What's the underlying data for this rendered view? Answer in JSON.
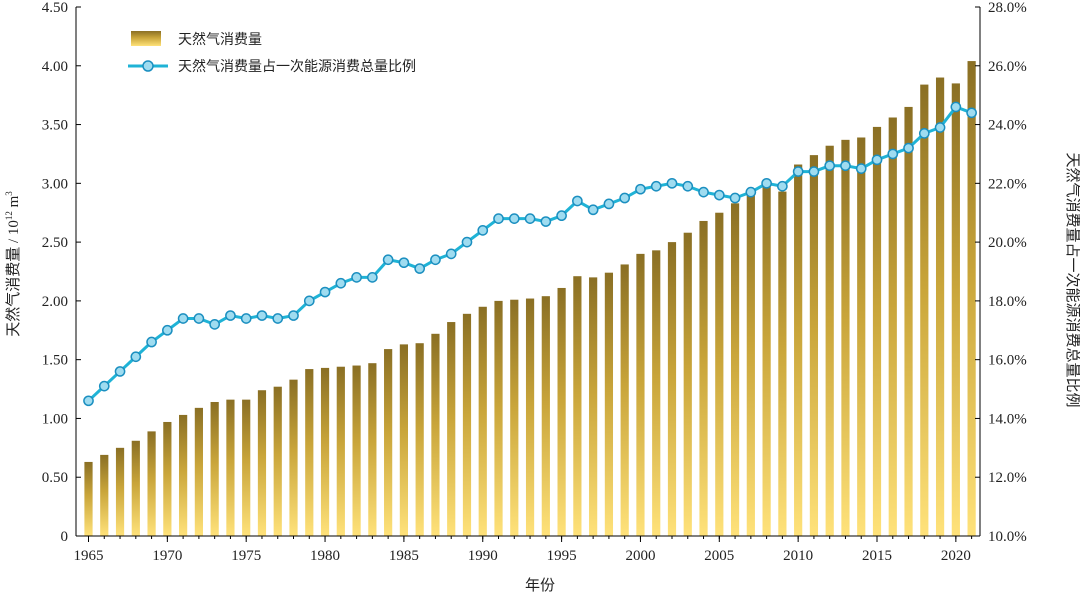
{
  "chart_data": {
    "type": "bar+line",
    "title": "",
    "xlabel": "年份",
    "ylabel_left": "天然气消费量 / 10",
    "ylabel_left_sup": "12",
    "ylabel_left_unit": " m",
    "ylabel_left_unit_sup": "3",
    "ylabel_right": "天然气消费量占一次能源消费总量比例",
    "ylim_left": [
      0,
      4.5
    ],
    "ylim_right": [
      10.0,
      28.0
    ],
    "xlim": [
      1965,
      2021
    ],
    "grid": false,
    "legend_position": "top-left",
    "left_ticks": [
      "0",
      "0.50",
      "1.00",
      "1.50",
      "2.00",
      "2.50",
      "3.00",
      "3.50",
      "4.00",
      "4.50"
    ],
    "right_ticks": [
      "10.0%",
      "12.0%",
      "14.0%",
      "16.0%",
      "18.0%",
      "20.0%",
      "22.0%",
      "24.0%",
      "26.0%",
      "28.0%"
    ],
    "x_ticks": [
      "1965",
      "1970",
      "1975",
      "1980",
      "1985",
      "1990",
      "1995",
      "2000",
      "2005",
      "2010",
      "2015",
      "2020"
    ],
    "years": [
      1965,
      1966,
      1967,
      1968,
      1969,
      1970,
      1971,
      1972,
      1973,
      1974,
      1975,
      1976,
      1977,
      1978,
      1979,
      1980,
      1981,
      1982,
      1983,
      1984,
      1985,
      1986,
      1987,
      1988,
      1989,
      1990,
      1991,
      1992,
      1993,
      1994,
      1995,
      1996,
      1997,
      1998,
      1999,
      2000,
      2001,
      2002,
      2003,
      2004,
      2005,
      2006,
      2007,
      2008,
      2009,
      2010,
      2011,
      2012,
      2013,
      2014,
      2015,
      2016,
      2017,
      2018,
      2019,
      2020,
      2021
    ],
    "series": [
      {
        "name": "天然气消费量",
        "type": "bar",
        "axis": "left",
        "values": [
          0.63,
          0.69,
          0.75,
          0.81,
          0.89,
          0.97,
          1.03,
          1.09,
          1.14,
          1.16,
          1.16,
          1.24,
          1.27,
          1.33,
          1.42,
          1.43,
          1.44,
          1.45,
          1.47,
          1.59,
          1.63,
          1.64,
          1.72,
          1.82,
          1.89,
          1.95,
          2.0,
          2.01,
          2.02,
          2.04,
          2.11,
          2.21,
          2.2,
          2.24,
          2.31,
          2.4,
          2.43,
          2.5,
          2.58,
          2.68,
          2.75,
          2.83,
          2.93,
          3.02,
          2.93,
          3.16,
          3.24,
          3.32,
          3.37,
          3.39,
          3.48,
          3.56,
          3.65,
          3.84,
          3.9,
          3.85,
          4.04
        ]
      },
      {
        "name": "天然气消费量占一次能源消费总量比例",
        "type": "line",
        "axis": "right",
        "values": [
          14.6,
          15.1,
          15.6,
          16.1,
          16.6,
          17.0,
          17.4,
          17.4,
          17.2,
          17.5,
          17.4,
          17.5,
          17.4,
          17.5,
          18.0,
          18.3,
          18.6,
          18.8,
          18.8,
          19.4,
          19.3,
          19.1,
          19.4,
          19.6,
          20.0,
          20.4,
          20.8,
          20.8,
          20.8,
          20.7,
          20.9,
          21.4,
          21.1,
          21.3,
          21.5,
          21.8,
          21.9,
          22.0,
          21.9,
          21.7,
          21.6,
          21.5,
          21.7,
          22.0,
          21.9,
          22.4,
          22.4,
          22.6,
          22.6,
          22.5,
          22.8,
          23.0,
          23.2,
          23.7,
          23.9,
          24.6,
          24.4
        ]
      }
    ]
  },
  "legend": {
    "bar_label": "天然气消费量",
    "line_label": "天然气消费量占一次能源消费总量比例"
  },
  "colors": {
    "bar_top": "#8a6f24",
    "bar_mid": "#c9a53a",
    "bar_bottom": "#ffe27a",
    "line": "#1fb3d6",
    "marker_fill": "#9fdcf0",
    "marker_stroke": "#1b8fc0",
    "axis": "#000000"
  }
}
